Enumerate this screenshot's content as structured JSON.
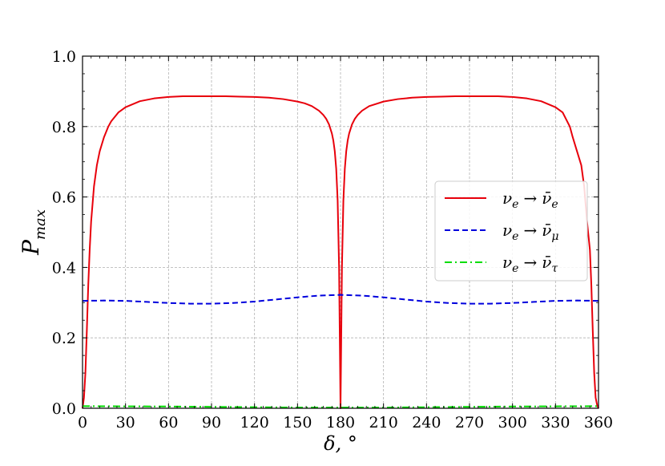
{
  "chart_data": {
    "type": "line",
    "xlabel": "δ, °",
    "ylabel": "P",
    "ylabel_sub": "max",
    "xlim": [
      0,
      360
    ],
    "ylim": [
      0,
      1.0
    ],
    "xticks": [
      0,
      30,
      60,
      90,
      120,
      150,
      180,
      210,
      240,
      270,
      300,
      330,
      360
    ],
    "xtick_labels": [
      "0",
      "30",
      "60",
      "90",
      "120",
      "150",
      "180",
      "210",
      "240",
      "270",
      "300",
      "330",
      "360"
    ],
    "yticks": [
      0,
      0.2,
      0.4,
      0.6,
      0.8,
      1.0
    ],
    "ytick_labels": [
      "0.0",
      "0.2",
      "0.4",
      "0.6",
      "0.8",
      "1.0"
    ],
    "grid": true,
    "legend_position": "right",
    "series": [
      {
        "name": "ν_e → ν̄_e",
        "legend_base": "ν",
        "legend_sub": "e",
        "legend_arrow": "→",
        "legend_target": "ν̄",
        "legend_target_sub": "e",
        "color": "#e8000b",
        "style": "solid",
        "x": [
          0,
          1,
          2,
          3,
          4,
          5,
          6,
          8,
          10,
          12,
          15,
          18,
          20,
          25,
          30,
          40,
          50,
          60,
          70,
          80,
          90,
          100,
          110,
          120,
          130,
          140,
          150,
          155,
          160,
          165,
          168,
          170,
          172,
          174,
          175,
          176,
          177,
          178,
          179,
          180,
          181,
          182,
          183,
          184,
          185,
          186,
          188,
          190,
          192,
          195,
          200,
          210,
          220,
          230,
          240,
          250,
          260,
          270,
          280,
          290,
          300,
          310,
          320,
          330,
          335,
          340,
          342,
          345,
          348,
          350,
          352,
          354,
          355,
          356,
          357,
          358,
          359,
          360
        ],
        "y": [
          0.0,
          0.03,
          0.1,
          0.22,
          0.35,
          0.45,
          0.53,
          0.63,
          0.69,
          0.73,
          0.77,
          0.8,
          0.815,
          0.84,
          0.855,
          0.872,
          0.88,
          0.884,
          0.886,
          0.886,
          0.886,
          0.886,
          0.885,
          0.884,
          0.882,
          0.878,
          0.871,
          0.866,
          0.858,
          0.845,
          0.833,
          0.822,
          0.806,
          0.78,
          0.76,
          0.73,
          0.68,
          0.59,
          0.4,
          0.0,
          0.4,
          0.59,
          0.68,
          0.73,
          0.76,
          0.78,
          0.806,
          0.822,
          0.833,
          0.845,
          0.858,
          0.871,
          0.878,
          0.882,
          0.884,
          0.885,
          0.886,
          0.886,
          0.886,
          0.886,
          0.884,
          0.88,
          0.872,
          0.855,
          0.84,
          0.8,
          0.77,
          0.73,
          0.69,
          0.63,
          0.53,
          0.45,
          0.35,
          0.22,
          0.1,
          0.03,
          0.01,
          0.0
        ]
      },
      {
        "name": "ν_e → ν̄_μ",
        "legend_base": "ν",
        "legend_sub": "e",
        "legend_arrow": "→",
        "legend_target": "ν̄",
        "legend_target_sub": "μ",
        "color": "#0000dd",
        "style": "dashed",
        "x": [
          0,
          15,
          30,
          45,
          60,
          75,
          90,
          105,
          120,
          135,
          150,
          165,
          180,
          195,
          210,
          225,
          240,
          255,
          270,
          285,
          300,
          315,
          330,
          345,
          360
        ],
        "y": [
          0.305,
          0.306,
          0.305,
          0.302,
          0.299,
          0.297,
          0.297,
          0.299,
          0.303,
          0.309,
          0.315,
          0.32,
          0.322,
          0.32,
          0.315,
          0.309,
          0.303,
          0.299,
          0.297,
          0.297,
          0.299,
          0.302,
          0.305,
          0.306,
          0.305
        ]
      },
      {
        "name": "ν_e → ν̄_τ",
        "legend_base": "ν",
        "legend_sub": "e",
        "legend_arrow": "→",
        "legend_target": "ν̄",
        "legend_target_sub": "τ",
        "color": "#00dd00",
        "style": "dashdot",
        "x": [
          0,
          30,
          60,
          90,
          120,
          150,
          180,
          210,
          240,
          270,
          300,
          330,
          360
        ],
        "y": [
          0.006,
          0.0055,
          0.005,
          0.004,
          0.003,
          0.002,
          0.002,
          0.002,
          0.003,
          0.004,
          0.005,
          0.0055,
          0.006
        ]
      }
    ]
  }
}
